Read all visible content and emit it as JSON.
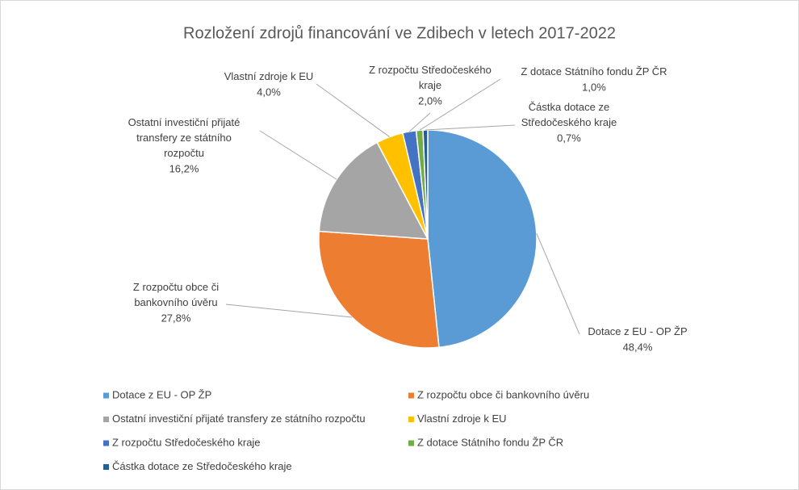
{
  "chart_data": {
    "type": "pie",
    "title": "Rozložení zdrojů financování ve Zdibech v letech 2017-2022",
    "categories": [
      "Dotace z EU - OP ŽP",
      "Z rozpočtu obce či bankovního úvěru",
      "Ostatní investiční přijaté transfery ze státního rozpočtu",
      "Vlastní zdroje k EU",
      "Z rozpočtu Středočeského kraje",
      "Z dotace Státního fondu ŽP ČR",
      "Částka dotace ze Středočeského kraje"
    ],
    "values": [
      48.4,
      27.8,
      16.2,
      4.0,
      2.0,
      1.0,
      0.7
    ],
    "value_labels": [
      "48,4%",
      "27,8%",
      "16,2%",
      "4,0%",
      "2,0%",
      "1,0%",
      "0,7%"
    ],
    "colors": [
      "#5b9bd5",
      "#ed7d31",
      "#a5a5a5",
      "#ffc000",
      "#4472c4",
      "#70ad47",
      "#255e91"
    ],
    "legend": "bottom"
  }
}
